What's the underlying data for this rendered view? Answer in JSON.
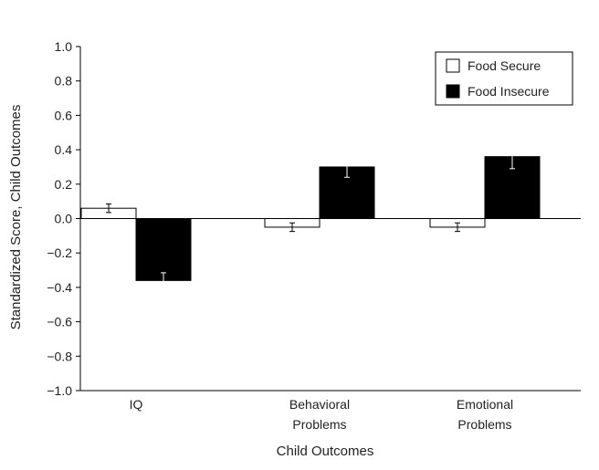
{
  "chart_data": {
    "type": "bar",
    "xlabel": "Child Outcomes",
    "ylabel": "Standardized Score, Child Outcomes",
    "ylim": [
      -1.0,
      1.0
    ],
    "yticks": [
      "1.0",
      "0.8",
      "0.6",
      "0.4",
      "0.2",
      "0.0",
      "−0.2",
      "−0.4",
      "−0.6",
      "−0.8",
      "−1.0"
    ],
    "ytick_values": [
      1.0,
      0.8,
      0.6,
      0.4,
      0.2,
      0.0,
      -0.2,
      -0.4,
      -0.6,
      -0.8,
      -1.0
    ],
    "categories": [
      [
        "IQ"
      ],
      [
        "Behavioral",
        "Problems"
      ],
      [
        "Emotional",
        "Problems"
      ]
    ],
    "series": [
      {
        "name": "Food Secure",
        "color": "#ffffff",
        "values": [
          0.06,
          -0.05,
          -0.05
        ],
        "error": [
          0.025,
          0.025,
          0.025
        ]
      },
      {
        "name": "Food Insecure",
        "color": "#000000",
        "values": [
          -0.36,
          0.3,
          0.36
        ],
        "error": [
          0.045,
          0.06,
          0.07
        ]
      }
    ],
    "legend_position": "top-right",
    "grid": false
  }
}
